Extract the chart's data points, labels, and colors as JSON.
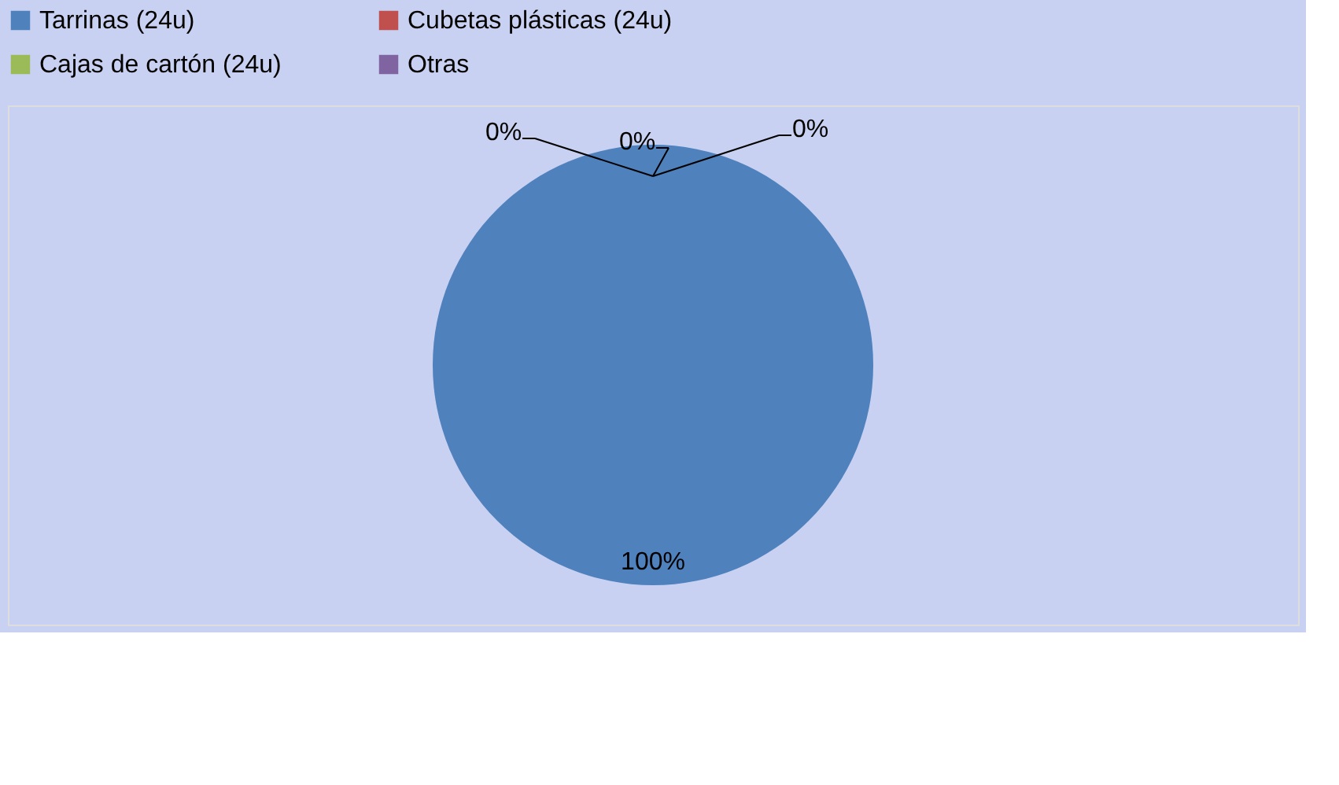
{
  "chart_data": {
    "type": "pie",
    "categories": [
      "Tarrinas (24u)",
      "Cubetas plásticas (24u)",
      "Cajas de cartón (24u)",
      "Otras"
    ],
    "values": [
      100,
      0,
      0,
      0
    ],
    "colors": [
      "#4f81bd",
      "#c0504d",
      "#9bbb59",
      "#8064a2"
    ],
    "value_labels": [
      "100%",
      "0%",
      "0%",
      "0%"
    ],
    "legend": "top"
  }
}
